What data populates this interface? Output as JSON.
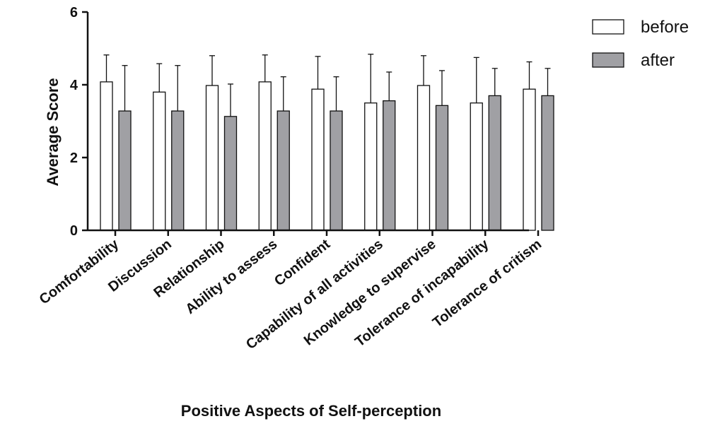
{
  "chart_data": {
    "type": "bar",
    "title": "",
    "xlabel": "Positive Aspects of Self-perception",
    "ylabel": "Average Score",
    "ylim": [
      0,
      6
    ],
    "yticks": [
      0,
      2,
      4,
      6
    ],
    "grid": false,
    "legend_position": "top-right",
    "categories": [
      "Comfortability",
      "Discussion",
      "Relationship",
      "Ability to assess",
      "Confident",
      "Capability of all activities",
      "Knowledge to supervise",
      "Tolerance of incapability",
      "Tolerance of critism"
    ],
    "series": [
      {
        "name": "before",
        "color": "#ffffff",
        "values": [
          4.08,
          3.8,
          3.98,
          4.08,
          3.88,
          3.5,
          3.98,
          3.5,
          3.88
        ],
        "error_upper": [
          4.82,
          4.58,
          4.8,
          4.82,
          4.78,
          4.84,
          4.8,
          4.75,
          4.63
        ]
      },
      {
        "name": "after",
        "color": "#a0a0a4",
        "values": [
          3.28,
          3.28,
          3.13,
          3.28,
          3.28,
          3.56,
          3.43,
          3.7,
          3.7
        ],
        "error_upper": [
          4.53,
          4.53,
          4.02,
          4.22,
          4.22,
          4.35,
          4.39,
          4.45,
          4.45
        ]
      }
    ]
  }
}
